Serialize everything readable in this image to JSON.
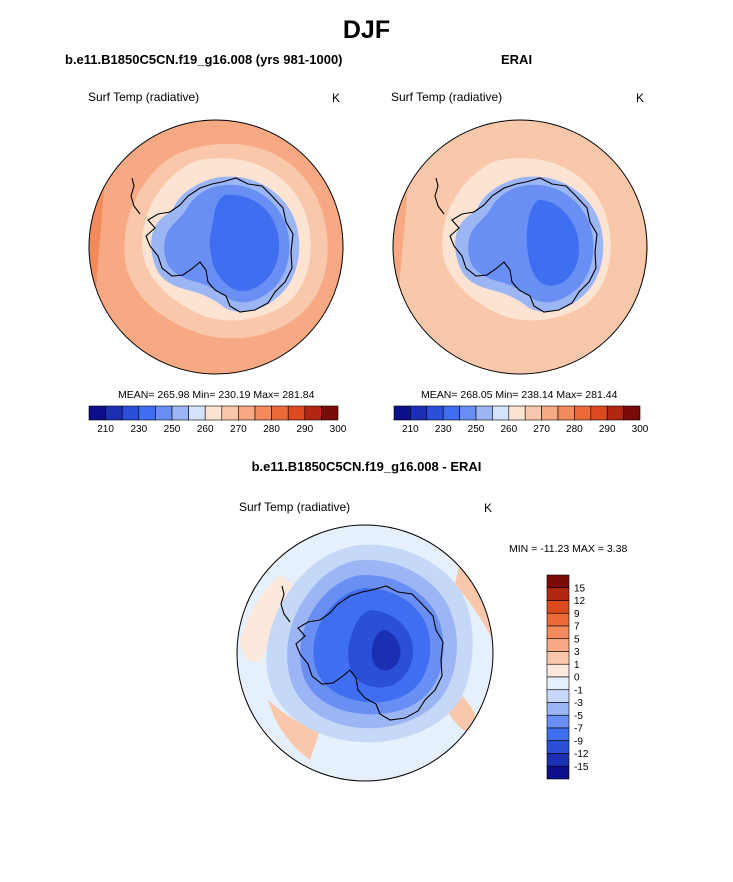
{
  "main_title": "DJF",
  "colors": {
    "abs_scale": [
      "#0b0f8a",
      "#1b2fb3",
      "#2a4fd8",
      "#3f6ef0",
      "#6a8ff4",
      "#9cb5f5",
      "#d4e2fa",
      "#fde3d2",
      "#f9c7aa",
      "#f6a983",
      "#f28a5c",
      "#ec6a38",
      "#dc4a1f",
      "#b32712",
      "#7a0b06"
    ],
    "diff_scale": [
      "#0b0f8a",
      "#1b2fb3",
      "#2a4fd8",
      "#3f6ef0",
      "#6a8ff4",
      "#9cb5f5",
      "#c6d8f7",
      "#e6f0fd",
      "#fde8dc",
      "#f9c7aa",
      "#f6a983",
      "#f28a5c",
      "#ec6a38",
      "#dc4a1f",
      "#b32712",
      "#7a0b06"
    ],
    "land_outline": "#000000"
  },
  "panels": {
    "model": {
      "title": "b.e11.B1850C5CN.f19_g16.008 (yrs 981-1000)",
      "variable": "Surf Temp (radiative)",
      "units": "K",
      "stats": "MEAN= 265.98  Min= 230.19  Max= 281.84"
    },
    "obs": {
      "title": "ERAI",
      "variable": "Surf Temp (radiative)",
      "units": "K",
      "stats": "MEAN= 268.05  Min= 238.14  Max= 281.44"
    },
    "diff": {
      "title": "b.e11.B1850C5CN.f19_g16.008 - ERAI",
      "variable": "Surf Temp (radiative)",
      "units": "K",
      "stats": "MIN = -11.23 MAX =   3.38"
    }
  },
  "chart_data": [
    {
      "type": "heatmap",
      "title": "b.e11.B1850C5CN.f19_g16.008 (yrs 981-1000)",
      "variable": "Surf Temp (radiative)",
      "units": "K",
      "projection": "south polar stereographic",
      "mean": 265.98,
      "min": 230.19,
      "max": 281.84,
      "colorbar": {
        "orientation": "horizontal",
        "levels": [
          210,
          220,
          230,
          240,
          250,
          255,
          260,
          265,
          270,
          275,
          280,
          285,
          290,
          295,
          300
        ],
        "tick_labels": [
          "210",
          "230",
          "250",
          "260",
          "270",
          "280",
          "290",
          "300"
        ]
      }
    },
    {
      "type": "heatmap",
      "title": "ERAI",
      "variable": "Surf Temp (radiative)",
      "units": "K",
      "projection": "south polar stereographic",
      "mean": 268.05,
      "min": 238.14,
      "max": 281.44,
      "colorbar": {
        "orientation": "horizontal",
        "levels": [
          210,
          220,
          230,
          240,
          250,
          255,
          260,
          265,
          270,
          275,
          280,
          285,
          290,
          295,
          300
        ],
        "tick_labels": [
          "210",
          "230",
          "250",
          "260",
          "270",
          "280",
          "290",
          "300"
        ]
      }
    },
    {
      "type": "heatmap",
      "title": "b.e11.B1850C5CN.f19_g16.008 - ERAI",
      "variable": "Surf Temp (radiative)",
      "units": "K",
      "projection": "south polar stereographic",
      "min": -11.23,
      "max": 3.38,
      "colorbar": {
        "orientation": "vertical",
        "levels": [
          -15,
          -12,
          -9,
          -7,
          -5,
          -3,
          -1,
          0,
          1,
          3,
          5,
          7,
          9,
          12,
          15
        ],
        "tick_labels": [
          "15",
          "12",
          "9",
          "7",
          "5",
          "3",
          "1",
          "0",
          "-1",
          "-3",
          "-5",
          "-7",
          "-9",
          "-12",
          "-15"
        ]
      }
    }
  ]
}
